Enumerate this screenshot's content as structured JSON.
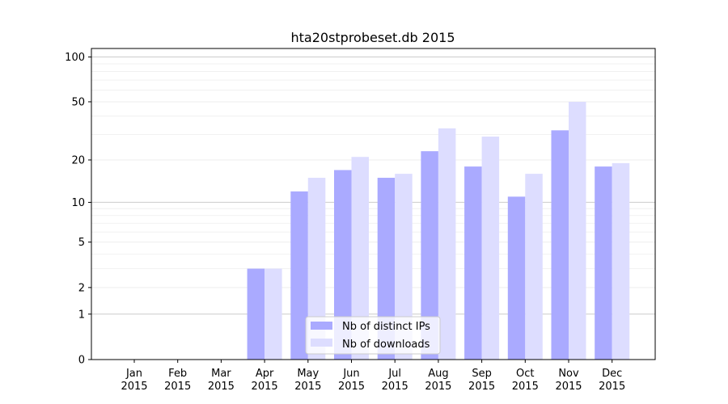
{
  "chart_data": {
    "type": "bar",
    "title": "hta20stprobeset.db 2015",
    "xlabel": "",
    "ylabel": "",
    "yscale": "log(1+y)",
    "ylim": [
      0,
      114
    ],
    "yticks": [
      "0",
      "1",
      "2",
      "5",
      "10",
      "20",
      "50",
      "100"
    ],
    "ytick_values": [
      0,
      1,
      2,
      5,
      10,
      20,
      50,
      100
    ],
    "minor_grid_values": [
      3,
      4,
      6,
      7,
      8,
      9,
      30,
      40,
      60,
      70,
      80,
      90
    ],
    "grid": true,
    "legend_position": "bottom-center",
    "categories": [
      "Jan\n2015",
      "Feb\n2015",
      "Mar\n2015",
      "Apr\n2015",
      "May\n2015",
      "Jun\n2015",
      "Jul\n2015",
      "Aug\n2015",
      "Sep\n2015",
      "Oct\n2015",
      "Nov\n2015",
      "Dec\n2015"
    ],
    "series": [
      {
        "name": "Nb of distinct IPs",
        "color": "#aaaaff",
        "values": [
          0,
          0,
          0,
          3,
          12,
          17,
          15,
          23,
          18,
          11,
          32,
          18
        ]
      },
      {
        "name": "Nb of downloads",
        "color": "#ddddff",
        "values": [
          0,
          0,
          0,
          3,
          15,
          21,
          16,
          33,
          29,
          16,
          50,
          19
        ]
      }
    ]
  }
}
